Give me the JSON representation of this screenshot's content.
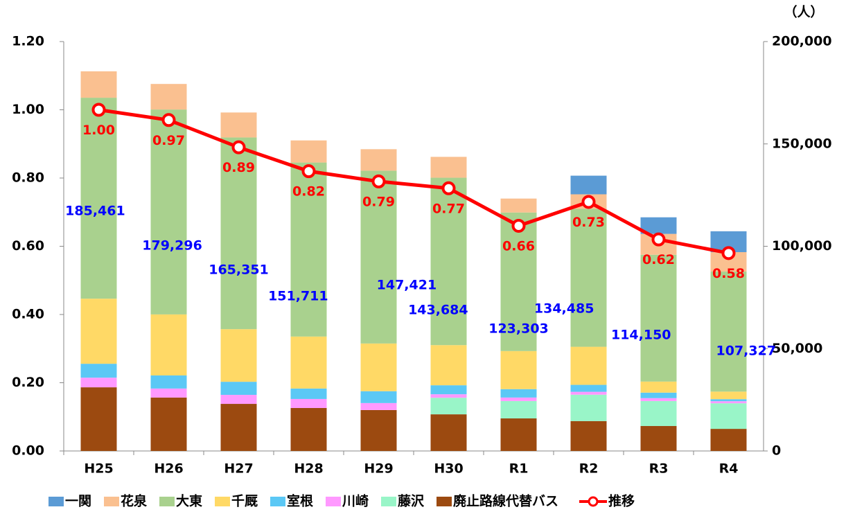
{
  "chart_data": {
    "type": "stacked_bar_line",
    "unit_label": "（人）",
    "categories": [
      "H25",
      "H26",
      "H27",
      "H28",
      "H29",
      "H30",
      "R1",
      "R2",
      "R3",
      "R4"
    ],
    "series": [
      {
        "name": "一関",
        "color": "#5b9bd5",
        "axis": "y2",
        "values": [
          0,
          0,
          0,
          0,
          0,
          0,
          0,
          9100,
          8100,
          10200
        ]
      },
      {
        "name": "花泉",
        "color": "#fac090",
        "axis": "y2",
        "values": [
          12900,
          12500,
          12200,
          10800,
          10500,
          10200,
          6800,
          7100,
          10200,
          9500
        ]
      },
      {
        "name": "大東",
        "color": "#a9d18e",
        "axis": "y2",
        "values": [
          98161,
          100096,
          93651,
          85011,
          84421,
          81784,
          67703,
          67385,
          61950,
          58627
        ]
      },
      {
        "name": "千厩",
        "color": "#ffd966",
        "axis": "y2",
        "values": [
          31800,
          29800,
          25700,
          25400,
          23300,
          19600,
          18600,
          18600,
          5400,
          3700
        ]
      },
      {
        "name": "室根",
        "color": "#5bc8f5",
        "axis": "y2",
        "values": [
          6800,
          6400,
          6400,
          5100,
          5800,
          4400,
          4100,
          3400,
          2700,
          1000
        ]
      },
      {
        "name": "川崎",
        "color": "#ff99ff",
        "axis": "y2",
        "values": [
          4700,
          4400,
          4400,
          4400,
          3400,
          1700,
          1700,
          1400,
          1400,
          1000
        ]
      },
      {
        "name": "藤沢",
        "color": "#99f5c8",
        "axis": "y2",
        "values": [
          0,
          0,
          0,
          0,
          0,
          8100,
          8500,
          12900,
          12200,
          12500
        ]
      },
      {
        "name": "廃止路線代替バス",
        "color": "#9c4a10",
        "axis": "y2",
        "values": [
          31100,
          26100,
          23000,
          21000,
          20000,
          17900,
          15900,
          14600,
          12200,
          10800
        ]
      },
      {
        "name": "推移",
        "color": "#ff0000",
        "type": "line",
        "values": [
          1.0,
          0.97,
          0.89,
          0.82,
          0.79,
          0.77,
          0.66,
          0.73,
          0.62,
          0.58
        ],
        "value_labels": [
          "1.00",
          "0.97",
          "0.89",
          "0.82",
          "0.79",
          "0.77",
          "0.66",
          "0.73",
          "0.62",
          "0.58"
        ]
      }
    ],
    "totals": {
      "values": [
        185461,
        179296,
        165351,
        151711,
        147421,
        143684,
        123303,
        134485,
        114150,
        107327
      ],
      "value_labels": [
        "185,461",
        "179,296",
        "165,351",
        "151,711",
        "147,421",
        "143,684",
        "123,303",
        "134,485",
        "114,150",
        "107,327"
      ]
    },
    "ylim": [
      0,
      1.2
    ],
    "yticks": [
      {
        "value": 0,
        "label": "0.00"
      },
      {
        "value": 0.2,
        "label": "0.20"
      },
      {
        "value": 0.4,
        "label": "0.40"
      },
      {
        "value": 0.6,
        "label": "0.60"
      },
      {
        "value": 0.8,
        "label": "0.80"
      },
      {
        "value": 1.0,
        "label": "1.00"
      },
      {
        "value": 1.2,
        "label": "1.20"
      }
    ],
    "y2lim": [
      0,
      200000
    ],
    "y2ticks": [
      0,
      {
        "value": 50000,
        "label": "50,000"
      },
      {
        "value": 100000,
        "label": "100,000"
      },
      {
        "value": 150000,
        "label": "150,000"
      },
      {
        "value": 200000,
        "label": "200,000"
      }
    ],
    "legend": "bottom"
  }
}
